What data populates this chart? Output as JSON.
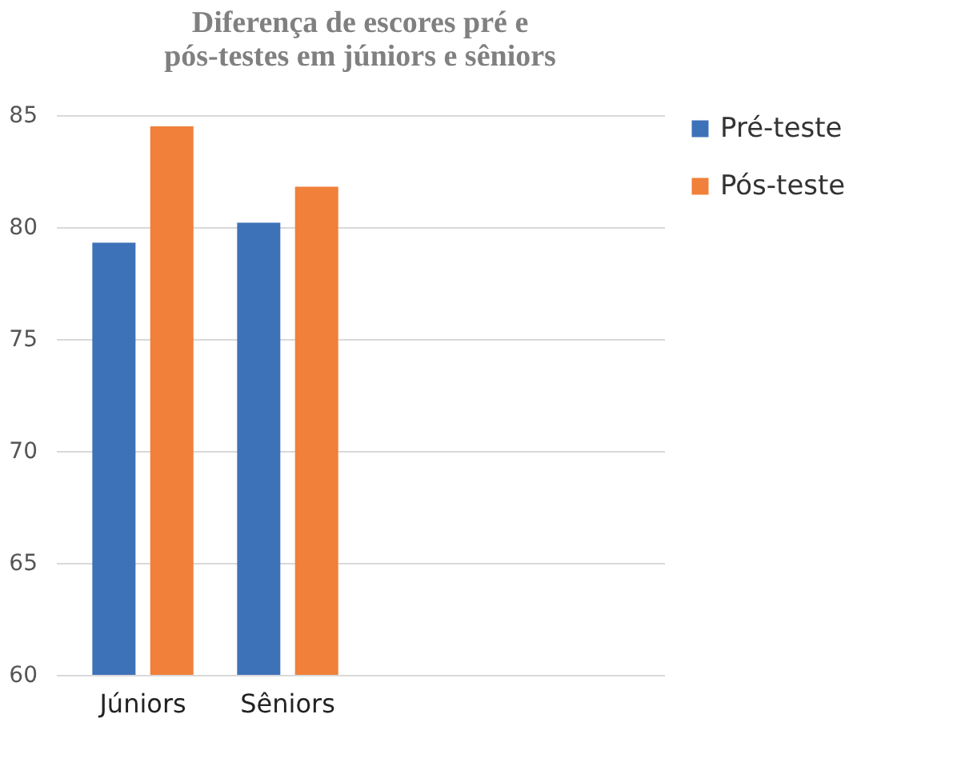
{
  "chart_data": {
    "type": "bar",
    "title": [
      "Diferença de escores pré e",
      "pós-testes em júniors e sêniors"
    ],
    "categories": [
      "Júniors",
      "Sêniors",
      null,
      null
    ],
    "series": [
      {
        "name": "Pré-teste",
        "color": "#3e72b8",
        "values": [
          79.3,
          80.2,
          60,
          60
        ]
      },
      {
        "name": "Pós-teste",
        "color": "#f0803a",
        "values": [
          84.5,
          81.8,
          60,
          60
        ]
      }
    ],
    "ylim": [
      60,
      85
    ],
    "yticks": [
      60,
      65,
      70,
      75,
      80,
      85
    ],
    "grid": "y",
    "legend": "right"
  }
}
